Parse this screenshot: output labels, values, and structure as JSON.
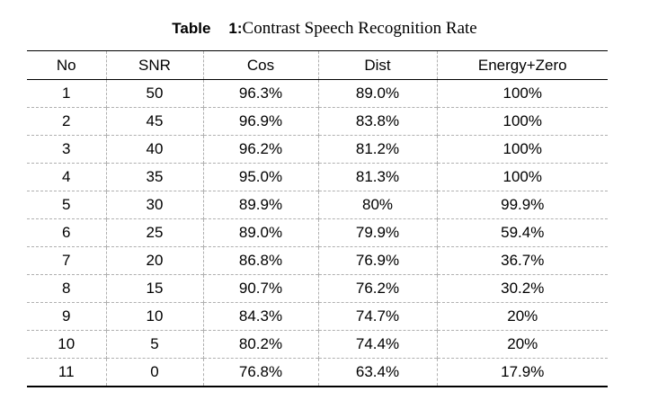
{
  "caption": {
    "label": "Table",
    "number": "1:",
    "title": "Contrast Speech Recognition Rate"
  },
  "table": {
    "headers": [
      "No",
      "SNR",
      "Cos",
      "Dist",
      "Energy+Zero"
    ],
    "rows": [
      [
        "1",
        "50",
        "96.3%",
        "89.0%",
        "100%"
      ],
      [
        "2",
        "45",
        "96.9%",
        "83.8%",
        "100%"
      ],
      [
        "3",
        "40",
        "96.2%",
        "81.2%",
        "100%"
      ],
      [
        "4",
        "35",
        "95.0%",
        "81.3%",
        "100%"
      ],
      [
        "5",
        "30",
        "89.9%",
        "80%",
        "99.9%"
      ],
      [
        "6",
        "25",
        "89.0%",
        "79.9%",
        "59.4%"
      ],
      [
        "7",
        "20",
        "86.8%",
        "76.9%",
        "36.7%"
      ],
      [
        "8",
        "15",
        "90.7%",
        "76.2%",
        "30.2%"
      ],
      [
        "9",
        "10",
        "84.3%",
        "74.7%",
        "20%"
      ],
      [
        "10",
        "5",
        "80.2%",
        "74.4%",
        "20%"
      ],
      [
        "11",
        "0",
        "76.8%",
        "63.4%",
        "17.9%"
      ]
    ]
  }
}
